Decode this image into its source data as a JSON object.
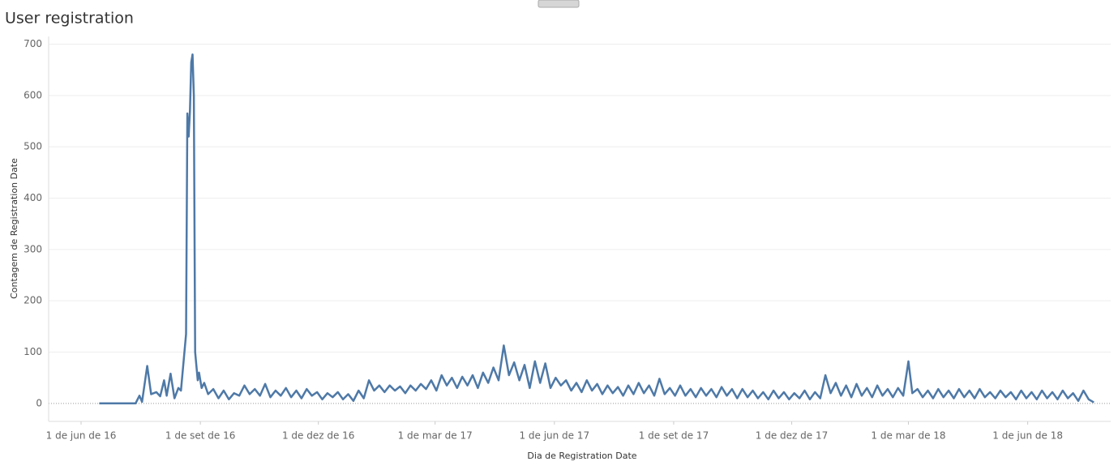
{
  "chart_data": {
    "type": "line",
    "title": "User registration",
    "x_label": "Dia de Registration Date",
    "y_label": "Contagem de Registration Date",
    "color": "#4e79a7",
    "grid": true,
    "ylim": [
      -35,
      715
    ],
    "yticks": [
      0,
      100,
      200,
      300,
      400,
      500,
      600,
      700
    ],
    "xlim": [
      "2016-05-07",
      "2018-08-04"
    ],
    "xticks": [
      {
        "value": "2016-06-01",
        "label": "1 de jun de 16"
      },
      {
        "value": "2016-09-01",
        "label": "1 de set de 16"
      },
      {
        "value": "2016-12-01",
        "label": "1 de dez de 16"
      },
      {
        "value": "2017-03-01",
        "label": "1 de mar de 17"
      },
      {
        "value": "2017-06-01",
        "label": "1 de jun de 17"
      },
      {
        "value": "2017-09-01",
        "label": "1 de set de 17"
      },
      {
        "value": "2017-12-01",
        "label": "1 de dez de 17"
      },
      {
        "value": "2018-03-01",
        "label": "1 de mar de 18"
      },
      {
        "value": "2018-06-01",
        "label": "1 de jun de 18"
      }
    ],
    "x": [
      "2016-06-15",
      "2016-07-13",
      "2016-07-16",
      "2016-07-18",
      "2016-07-22",
      "2016-07-25",
      "2016-07-29",
      "2016-08-01",
      "2016-08-04",
      "2016-08-06",
      "2016-08-09",
      "2016-08-12",
      "2016-08-15",
      "2016-08-17",
      "2016-08-21",
      "2016-08-22",
      "2016-08-23",
      "2016-08-24",
      "2016-08-25",
      "2016-08-26",
      "2016-08-27",
      "2016-08-28",
      "2016-08-30",
      "2016-08-31",
      "2016-09-02",
      "2016-09-04",
      "2016-09-07",
      "2016-09-11",
      "2016-09-15",
      "2016-09-19",
      "2016-09-23",
      "2016-09-27",
      "2016-10-01",
      "2016-10-05",
      "2016-10-09",
      "2016-10-13",
      "2016-10-17",
      "2016-10-21",
      "2016-10-25",
      "2016-10-29",
      "2016-11-02",
      "2016-11-06",
      "2016-11-10",
      "2016-11-14",
      "2016-11-18",
      "2016-11-22",
      "2016-11-26",
      "2016-11-30",
      "2016-12-04",
      "2016-12-08",
      "2016-12-12",
      "2016-12-16",
      "2016-12-20",
      "2016-12-24",
      "2016-12-28",
      "2017-01-01",
      "2017-01-05",
      "2017-01-09",
      "2017-01-13",
      "2017-01-17",
      "2017-01-21",
      "2017-01-25",
      "2017-01-29",
      "2017-02-02",
      "2017-02-06",
      "2017-02-10",
      "2017-02-14",
      "2017-02-18",
      "2017-02-22",
      "2017-02-26",
      "2017-03-02",
      "2017-03-06",
      "2017-03-10",
      "2017-03-14",
      "2017-03-18",
      "2017-03-22",
      "2017-03-26",
      "2017-03-30",
      "2017-04-03",
      "2017-04-07",
      "2017-04-11",
      "2017-04-15",
      "2017-04-19",
      "2017-04-23",
      "2017-04-27",
      "2017-05-01",
      "2017-05-05",
      "2017-05-09",
      "2017-05-13",
      "2017-05-17",
      "2017-05-21",
      "2017-05-25",
      "2017-05-29",
      "2017-06-02",
      "2017-06-06",
      "2017-06-10",
      "2017-06-14",
      "2017-06-18",
      "2017-06-22",
      "2017-06-26",
      "2017-06-30",
      "2017-07-04",
      "2017-07-08",
      "2017-07-12",
      "2017-07-16",
      "2017-07-20",
      "2017-07-24",
      "2017-07-28",
      "2017-08-01",
      "2017-08-05",
      "2017-08-09",
      "2017-08-13",
      "2017-08-17",
      "2017-08-21",
      "2017-08-25",
      "2017-08-29",
      "2017-09-02",
      "2017-09-06",
      "2017-09-10",
      "2017-09-14",
      "2017-09-18",
      "2017-09-22",
      "2017-09-26",
      "2017-09-30",
      "2017-10-04",
      "2017-10-08",
      "2017-10-12",
      "2017-10-16",
      "2017-10-20",
      "2017-10-24",
      "2017-10-28",
      "2017-11-01",
      "2017-11-05",
      "2017-11-09",
      "2017-11-13",
      "2017-11-17",
      "2017-11-21",
      "2017-11-25",
      "2017-11-29",
      "2017-12-03",
      "2017-12-07",
      "2017-12-11",
      "2017-12-15",
      "2017-12-19",
      "2017-12-23",
      "2017-12-27",
      "2017-12-31",
      "2018-01-04",
      "2018-01-08",
      "2018-01-12",
      "2018-01-16",
      "2018-01-20",
      "2018-01-24",
      "2018-01-28",
      "2018-02-01",
      "2018-02-05",
      "2018-02-09",
      "2018-02-13",
      "2018-02-17",
      "2018-02-21",
      "2018-02-25",
      "2018-03-01",
      "2018-03-04",
      "2018-03-08",
      "2018-03-12",
      "2018-03-16",
      "2018-03-20",
      "2018-03-24",
      "2018-03-28",
      "2018-04-01",
      "2018-04-05",
      "2018-04-09",
      "2018-04-13",
      "2018-04-17",
      "2018-04-21",
      "2018-04-25",
      "2018-04-29",
      "2018-05-03",
      "2018-05-07",
      "2018-05-11",
      "2018-05-15",
      "2018-05-19",
      "2018-05-23",
      "2018-05-27",
      "2018-05-31",
      "2018-06-04",
      "2018-06-08",
      "2018-06-12",
      "2018-06-16",
      "2018-06-20",
      "2018-06-24",
      "2018-06-28",
      "2018-07-02",
      "2018-07-06",
      "2018-07-10",
      "2018-07-14",
      "2018-07-18",
      "2018-07-22"
    ],
    "values": [
      0,
      0,
      15,
      3,
      73,
      18,
      22,
      14,
      45,
      15,
      58,
      10,
      30,
      25,
      135,
      565,
      520,
      570,
      665,
      680,
      600,
      100,
      45,
      60,
      30,
      40,
      18,
      28,
      10,
      25,
      8,
      20,
      15,
      35,
      18,
      28,
      15,
      38,
      12,
      25,
      15,
      30,
      12,
      25,
      10,
      28,
      15,
      22,
      8,
      20,
      12,
      22,
      8,
      18,
      5,
      25,
      10,
      45,
      25,
      35,
      22,
      35,
      25,
      33,
      20,
      35,
      25,
      38,
      28,
      45,
      25,
      55,
      35,
      50,
      30,
      52,
      35,
      55,
      30,
      60,
      40,
      70,
      45,
      113,
      55,
      80,
      45,
      75,
      30,
      82,
      40,
      78,
      30,
      50,
      35,
      45,
      25,
      40,
      22,
      45,
      25,
      38,
      18,
      35,
      20,
      32,
      15,
      35,
      18,
      40,
      20,
      35,
      15,
      48,
      18,
      30,
      15,
      35,
      15,
      28,
      12,
      30,
      15,
      28,
      12,
      32,
      15,
      28,
      10,
      28,
      12,
      25,
      10,
      22,
      8,
      25,
      10,
      22,
      8,
      20,
      10,
      25,
      8,
      22,
      10,
      55,
      20,
      40,
      15,
      35,
      12,
      38,
      15,
      30,
      12,
      35,
      15,
      28,
      12,
      30,
      15,
      82,
      20,
      28,
      12,
      25,
      10,
      28,
      12,
      25,
      10,
      28,
      12,
      25,
      10,
      28,
      12,
      22,
      10,
      25,
      12,
      22,
      8,
      25,
      10,
      22,
      8,
      25,
      10,
      22,
      8,
      25,
      10,
      20,
      5,
      25,
      8,
      2
    ]
  }
}
